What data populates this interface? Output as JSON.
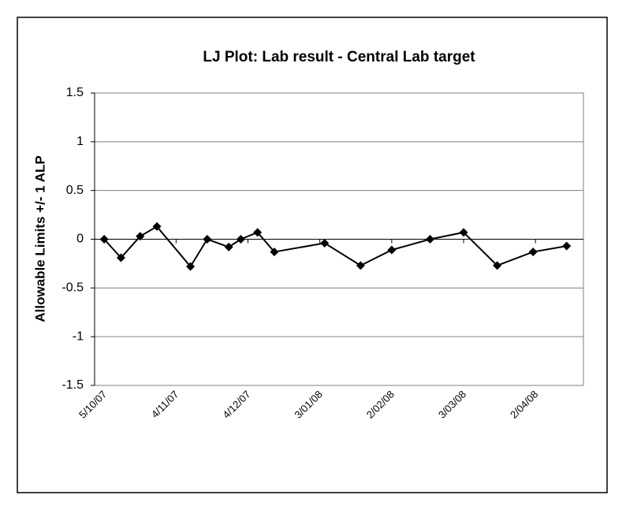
{
  "chart_data": {
    "type": "line",
    "title": "LJ Plot: Lab result - Central Lab target",
    "y_label": "Allowable Limits +/- 1 ALP",
    "x": [
      "2007-10-05",
      "2007-10-12",
      "2007-10-20",
      "2007-10-27",
      "2007-11-10",
      "2007-11-17",
      "2007-11-26",
      "2007-12-01",
      "2007-12-08",
      "2007-12-15",
      "2008-01-05",
      "2008-01-20",
      "2008-02-02",
      "2008-02-18",
      "2008-03-03",
      "2008-03-17",
      "2008-04-01",
      "2008-04-15"
    ],
    "series": [
      {
        "color": "#000000",
        "values": [
          0,
          -0.19,
          0.03,
          0.13,
          -0.28,
          0,
          -0.08,
          0,
          0.07,
          -0.13,
          -0.04,
          -0.27,
          -0.11,
          0,
          0.07,
          -0.27,
          -0.13,
          -0.07
        ]
      }
    ],
    "xlim": [
      "2007-10-01",
      "2008-04-22"
    ],
    "xticks": [
      {
        "value": "2007-10-05",
        "label": "5/10/07"
      },
      {
        "value": "2007-11-04",
        "label": "4/11/07"
      },
      {
        "value": "2007-12-04",
        "label": "4/12/07"
      },
      {
        "value": "2008-01-03",
        "label": "3/01/08"
      },
      {
        "value": "2008-02-02",
        "label": "2/02/08"
      },
      {
        "value": "2008-03-03",
        "label": "3/03/08"
      },
      {
        "value": "2008-04-02",
        "label": "2/04/08"
      }
    ],
    "ylim": [
      -1.5,
      1.5
    ],
    "yticks": [
      -1.5,
      -1,
      -0.5,
      0,
      0.5,
      1,
      1.5
    ],
    "grid": true
  }
}
